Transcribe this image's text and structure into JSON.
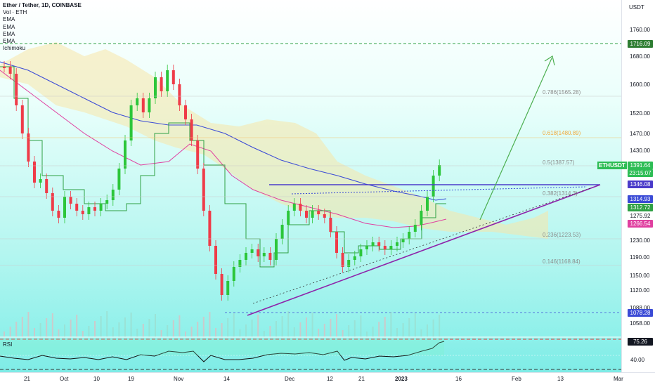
{
  "legend": {
    "title": "Ether / Tether, 1D, COINBASE",
    "vol": "Vol · ETH",
    "ema1": "EMA",
    "ema2": "EMA",
    "ema3": "EMA",
    "ema4": "EMA",
    "ichimoku": "Ichimoku"
  },
  "price_axis": {
    "currency": "USDT",
    "ticks": [
      "1760.00",
      "1680.00",
      "1600.00",
      "1520.00",
      "1470.00",
      "1430.00",
      "1230.00",
      "1190.00",
      "1150.00",
      "1120.00",
      "1088.00",
      "1058.00"
    ]
  },
  "tags": {
    "level_top": "1716.09",
    "symbol": "ETHUSDT",
    "last_price": "1391.64",
    "countdown": "23:15:07",
    "resistance": "1346.08",
    "ema_a": "1314.93",
    "ema_b": "1312.72",
    "ema_c": "1275.92",
    "ema_d": "1266.54",
    "support": "1078.28"
  },
  "fib_levels": [
    {
      "label": "0.786(1565.28)",
      "color": "#8c8c8c"
    },
    {
      "label": "0.618(1480.89)",
      "color": "#f2a93b"
    },
    {
      "label": "0.5(1387.57)",
      "color": "#8c8c8c"
    },
    {
      "label": "0.382(1314.3)",
      "color": "#8c8c8c"
    },
    {
      "label": "0.236(1223.53)",
      "color": "#8c8c8c"
    },
    {
      "label": "0.146(1168.84)",
      "color": "#8c8c8c"
    }
  ],
  "rsi": {
    "label": "RSI",
    "value": "75.26",
    "level": "40.00"
  },
  "time_axis": [
    "21",
    "Oct",
    "10",
    "19",
    "Nov",
    "14",
    "Dec",
    "12",
    "21",
    "2023",
    "16",
    "Feb",
    "13",
    "Mar"
  ],
  "colors": {
    "up": "#26a69a",
    "candle_up": "#2cc63a",
    "down": "#ef3b48",
    "ema_blue": "#3b4bd6",
    "ema_pink": "#e040a0",
    "triangle": "#7b1fa2",
    "arrow": "#4caf50"
  }
}
